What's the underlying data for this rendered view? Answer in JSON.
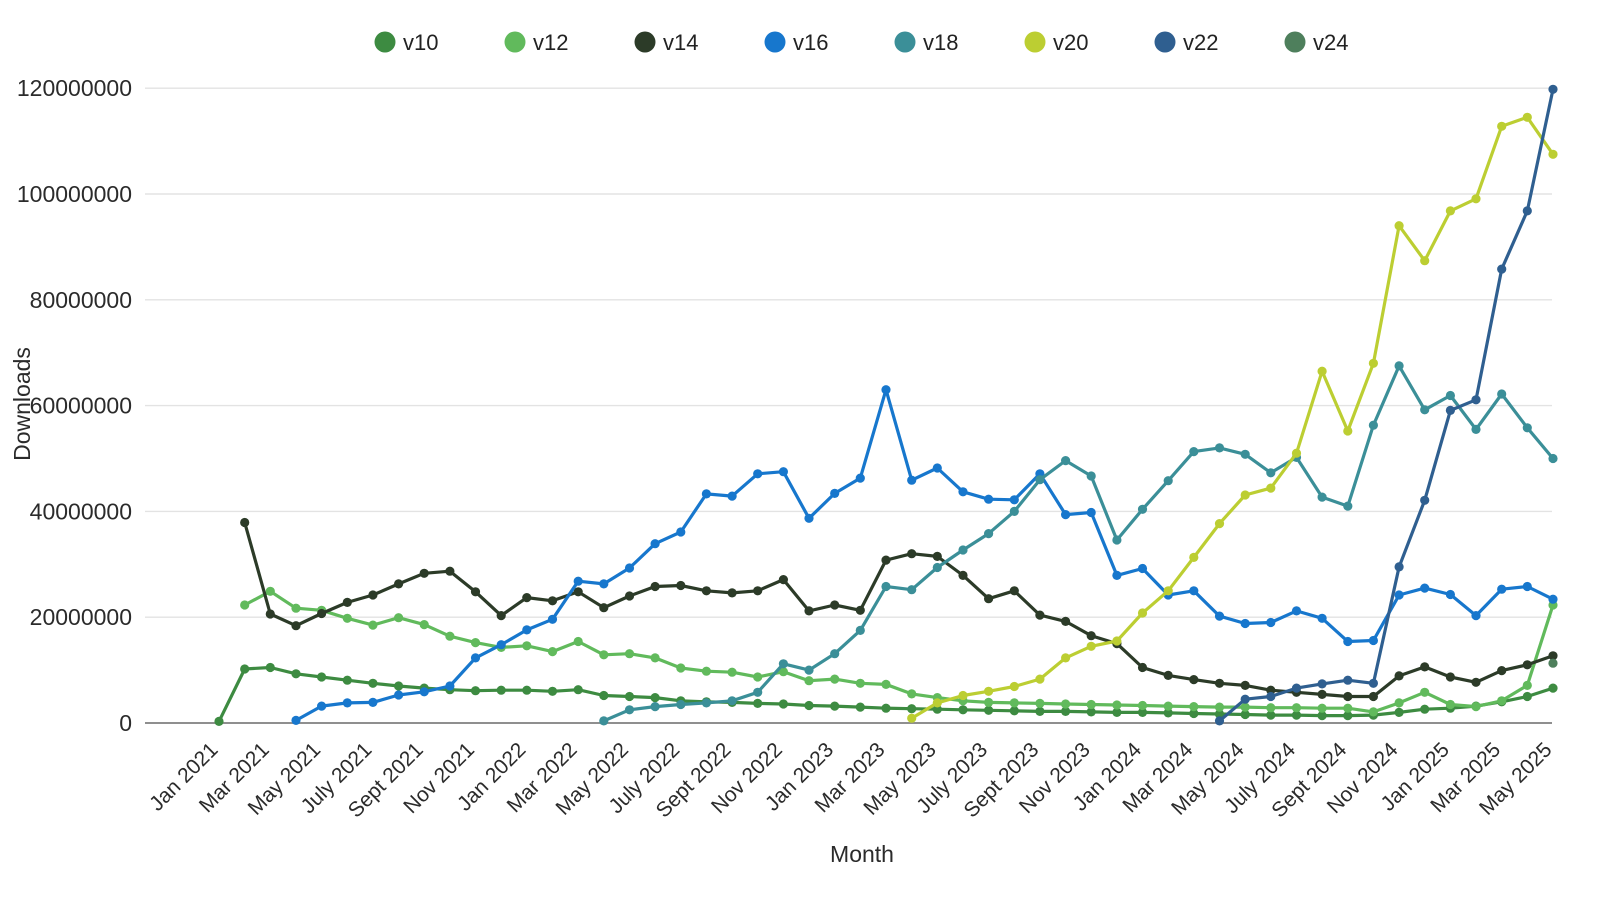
{
  "page": {
    "background": "#ffffff",
    "text_color": "#2b2b2b"
  },
  "chart_data": {
    "type": "line",
    "title": "",
    "xlabel": "Month",
    "ylabel": "Downloads",
    "unit": "downloads",
    "values_in": "millions",
    "ylim": [
      0,
      120000000
    ],
    "y_ticks": [
      "0",
      "20000000",
      "40000000",
      "60000000",
      "80000000",
      "100000000",
      "120000000"
    ],
    "grid": "horizontal",
    "legend_position": "top-center",
    "x_tick_every": 2,
    "categories": [
      "Jan 2021",
      "Feb 2021",
      "Mar 2021",
      "Apr 2021",
      "May 2021",
      "June 2021",
      "July 2021",
      "Aug 2021",
      "Sept 2021",
      "Oct 2021",
      "Nov 2021",
      "Dec 2021",
      "Jan 2022",
      "Feb 2022",
      "Mar 2022",
      "Apr 2022",
      "May 2022",
      "June 2022",
      "July 2022",
      "Aug 2022",
      "Sept 2022",
      "Oct 2022",
      "Nov 2022",
      "Dec 2022",
      "Jan 2023",
      "Feb 2023",
      "Mar 2023",
      "Apr 2023",
      "May 2023",
      "June 2023",
      "July 2023",
      "Aug 2023",
      "Sept 2023",
      "Oct 2023",
      "Nov 2023",
      "Dec 2023",
      "Jan 2024",
      "Feb 2024",
      "Mar 2024",
      "Apr 2024",
      "May 2024",
      "June 2024",
      "July 2024",
      "Aug 2024",
      "Sept 2024",
      "Oct 2024",
      "Nov 2024",
      "Dec 2024",
      "Jan 2025",
      "Feb 2025",
      "Mar 2025",
      "Apr 2025",
      "May 2025"
    ],
    "series": [
      {
        "name": "v10",
        "color": "#3d8b41",
        "values": [
          0.3,
          10.2,
          10.5,
          9.3,
          8.7,
          8.1,
          7.5,
          7.0,
          6.6,
          6.3,
          6.1,
          6.2,
          6.2,
          6.0,
          6.3,
          5.2,
          5.0,
          4.8,
          4.2,
          4.0,
          3.9,
          3.7,
          3.6,
          3.3,
          3.2,
          3.0,
          2.8,
          2.7,
          2.6,
          2.5,
          2.4,
          2.3,
          2.2,
          2.2,
          2.1,
          2.0,
          2.0,
          1.9,
          1.8,
          1.7,
          1.6,
          1.5,
          1.5,
          1.4,
          1.4,
          1.5,
          2.0,
          2.6,
          2.8,
          3.2,
          4.0,
          5.0,
          6.6
        ]
      },
      {
        "name": "v12",
        "color": "#61ba5c",
        "values": [
          null,
          22.3,
          24.9,
          21.7,
          21.3,
          19.8,
          18.5,
          19.9,
          18.6,
          16.4,
          15.2,
          14.3,
          14.6,
          13.5,
          15.4,
          12.9,
          13.1,
          12.3,
          10.4,
          9.8,
          9.6,
          8.7,
          9.7,
          8.0,
          8.3,
          7.5,
          7.3,
          5.5,
          4.8,
          4.2,
          3.9,
          3.8,
          3.7,
          3.6,
          3.5,
          3.4,
          3.3,
          3.2,
          3.1,
          3.0,
          3.0,
          2.9,
          2.9,
          2.8,
          2.8,
          2.1,
          3.8,
          5.8,
          3.5,
          3.1,
          4.2,
          7.1,
          22.3
        ]
      },
      {
        "name": "v14",
        "color": "#2c3b28",
        "values": [
          null,
          37.9,
          20.6,
          18.4,
          20.7,
          22.8,
          24.2,
          26.3,
          28.3,
          28.7,
          24.8,
          20.3,
          23.7,
          23.1,
          24.8,
          21.8,
          24.0,
          25.8,
          26.0,
          25.0,
          24.6,
          25.0,
          27.1,
          21.2,
          22.3,
          21.3,
          30.8,
          32.0,
          31.5,
          27.9,
          23.5,
          25.0,
          20.4,
          19.2,
          16.5,
          15.0,
          10.5,
          9.0,
          8.2,
          7.5,
          7.1,
          6.2,
          5.8,
          5.4,
          5.0,
          5.0,
          8.9,
          10.6,
          8.7,
          7.7,
          9.9,
          11.0,
          12.7
        ]
      },
      {
        "name": "v16",
        "color": "#1777cd",
        "values": [
          null,
          null,
          null,
          0.5,
          3.2,
          3.8,
          3.9,
          5.3,
          5.9,
          7.0,
          12.3,
          14.8,
          17.6,
          19.6,
          26.8,
          26.3,
          29.3,
          33.9,
          36.1,
          43.3,
          42.9,
          47.1,
          47.5,
          38.7,
          43.4,
          46.3,
          63.0,
          45.9,
          48.2,
          43.7,
          42.3,
          42.2,
          47.1,
          39.4,
          39.8,
          27.9,
          29.2,
          24.2,
          25.0,
          20.2,
          18.8,
          19.0,
          21.2,
          19.8,
          15.4,
          15.6,
          24.2,
          25.5,
          24.3,
          20.3,
          25.3,
          25.8,
          23.4
        ]
      },
      {
        "name": "v18",
        "color": "#3b8f98",
        "values": [
          null,
          null,
          null,
          null,
          null,
          null,
          null,
          null,
          null,
          null,
          null,
          null,
          null,
          null,
          null,
          0.4,
          2.5,
          3.1,
          3.5,
          3.8,
          4.2,
          5.8,
          11.2,
          10.0,
          13.1,
          17.5,
          25.8,
          25.2,
          29.4,
          32.7,
          35.8,
          40.0,
          46.0,
          49.6,
          46.7,
          34.6,
          40.4,
          45.8,
          51.3,
          52.0,
          50.8,
          47.3,
          50.2,
          42.7,
          41.0,
          56.3,
          67.5,
          59.2,
          61.9,
          55.5,
          62.2,
          55.8,
          50.0
        ]
      },
      {
        "name": "v20",
        "color": "#bcce32",
        "values": [
          null,
          null,
          null,
          null,
          null,
          null,
          null,
          null,
          null,
          null,
          null,
          null,
          null,
          null,
          null,
          null,
          null,
          null,
          null,
          null,
          null,
          null,
          null,
          null,
          null,
          null,
          null,
          0.9,
          3.8,
          5.2,
          6.0,
          6.9,
          8.3,
          12.3,
          14.5,
          15.5,
          20.8,
          25.0,
          31.3,
          37.7,
          43.1,
          44.4,
          51.0,
          66.5,
          55.2,
          68.0,
          94.0,
          87.4,
          96.8,
          99.1,
          112.8,
          114.5,
          107.5
        ]
      },
      {
        "name": "v22",
        "color": "#2f5f90",
        "values": [
          null,
          null,
          null,
          null,
          null,
          null,
          null,
          null,
          null,
          null,
          null,
          null,
          null,
          null,
          null,
          null,
          null,
          null,
          null,
          null,
          null,
          null,
          null,
          null,
          null,
          null,
          null,
          null,
          null,
          null,
          null,
          null,
          null,
          null,
          null,
          null,
          null,
          null,
          null,
          0.4,
          4.5,
          5.0,
          6.6,
          7.4,
          8.1,
          7.5,
          29.5,
          42.1,
          59.1,
          61.1,
          85.8,
          96.8,
          119.8
        ]
      },
      {
        "name": "v24",
        "color": "#4e7f5c",
        "values": [
          null,
          null,
          null,
          null,
          null,
          null,
          null,
          null,
          null,
          null,
          null,
          null,
          null,
          null,
          null,
          null,
          null,
          null,
          null,
          null,
          null,
          null,
          null,
          null,
          null,
          null,
          null,
          null,
          null,
          null,
          null,
          null,
          null,
          null,
          null,
          null,
          null,
          null,
          null,
          null,
          null,
          null,
          null,
          null,
          null,
          null,
          null,
          null,
          null,
          null,
          null,
          null,
          11.3
        ]
      }
    ],
    "style": {
      "gridline_color": "#e3e3e3",
      "axis_line_color": "#8f8f8f",
      "tick_label_color": "#2b2b2b",
      "marker_radius": 4.6,
      "line_width": 3.2
    }
  }
}
